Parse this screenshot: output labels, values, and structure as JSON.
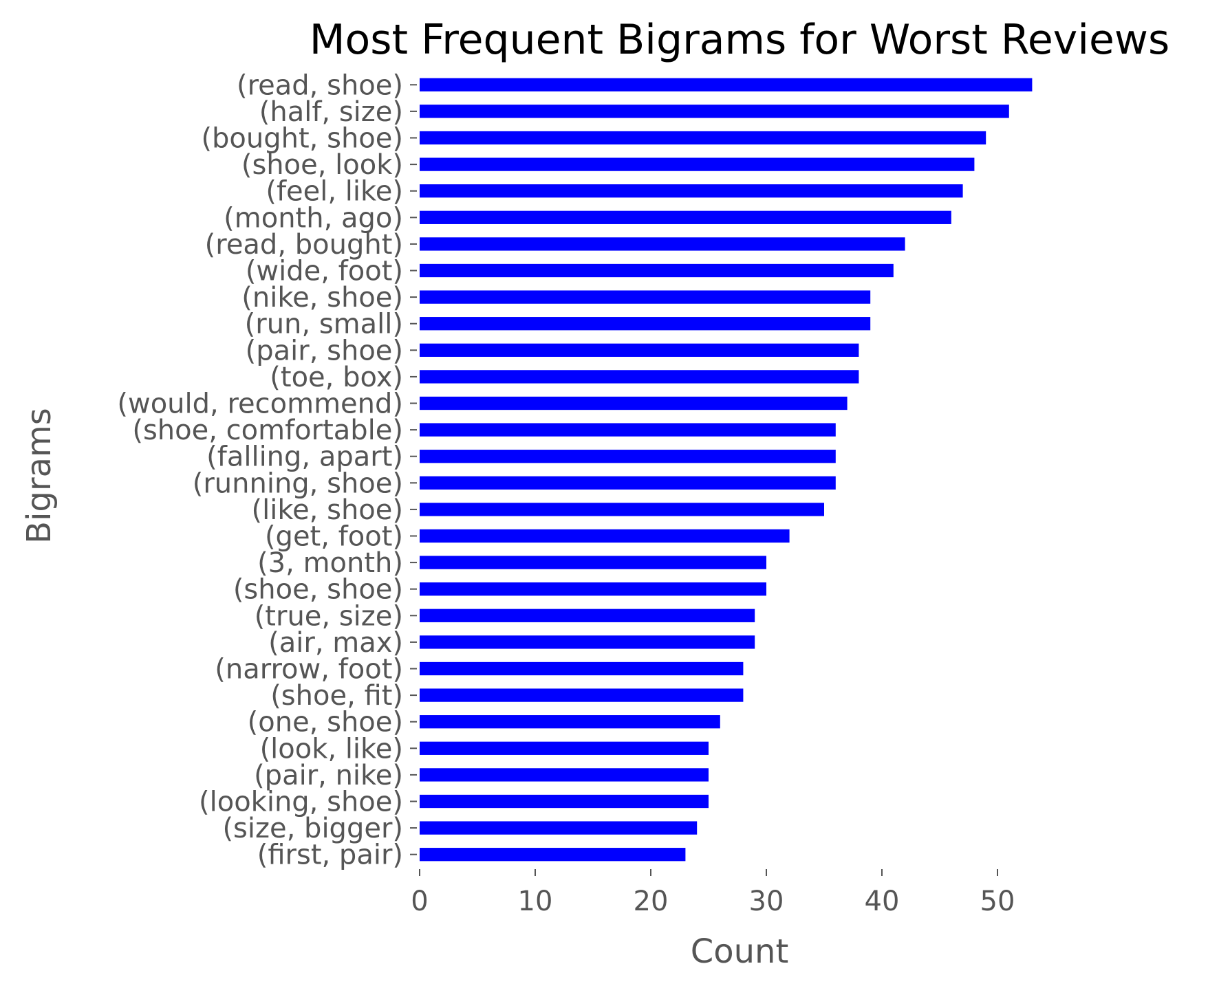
{
  "chart_data": {
    "type": "bar",
    "orientation": "horizontal",
    "title": "Most Frequent Bigrams for Worst Reviews",
    "xlabel": "Count",
    "ylabel": "Bigrams",
    "xlim": [
      0,
      60
    ],
    "xticks": [
      0,
      10,
      20,
      30,
      40,
      50
    ],
    "grid": false,
    "bar_color": "#0000ff",
    "categories": [
      "(read, shoe)",
      "(half, size)",
      "(bought, shoe)",
      "(shoe, look)",
      "(feel, like)",
      "(month, ago)",
      "(read, bought)",
      "(wide, foot)",
      "(nike, shoe)",
      "(run, small)",
      "(pair, shoe)",
      "(toe, box)",
      "(would, recommend)",
      "(shoe, comfortable)",
      "(falling, apart)",
      "(running, shoe)",
      "(like, shoe)",
      "(get, foot)",
      "(3, month)",
      "(shoe, shoe)",
      "(true, size)",
      "(air, max)",
      "(narrow, foot)",
      "(shoe, fit)",
      "(one, shoe)",
      "(look, like)",
      "(pair, nike)",
      "(looking, shoe)",
      "(size, bigger)",
      "(first, pair)"
    ],
    "values": [
      53,
      51,
      49,
      48,
      47,
      46,
      42,
      41,
      39,
      39,
      38,
      38,
      37,
      36,
      36,
      36,
      35,
      32,
      30,
      30,
      29,
      29,
      28,
      28,
      26,
      25,
      25,
      25,
      24,
      23
    ]
  }
}
